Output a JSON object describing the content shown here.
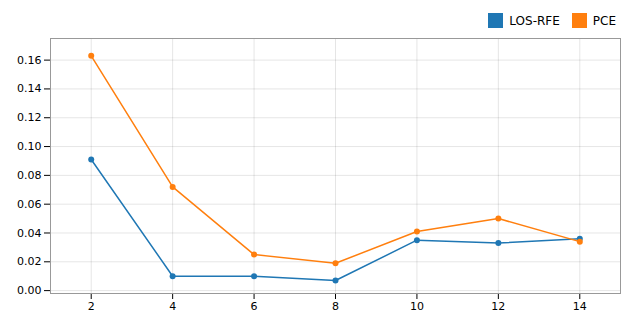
{
  "chart_data": {
    "type": "line",
    "x": [
      2,
      4,
      6,
      8,
      10,
      12,
      14
    ],
    "series": [
      {
        "name": "LOS-RFE",
        "color": "#1f77b4",
        "marker": "circle",
        "values": [
          0.091,
          0.01,
          0.01,
          0.007,
          0.035,
          0.033,
          0.036
        ]
      },
      {
        "name": "PCE",
        "color": "#ff7f0e",
        "marker": "circle",
        "values": [
          0.163,
          0.072,
          0.025,
          0.019,
          0.041,
          0.05,
          0.034
        ]
      }
    ],
    "xlim": [
      1,
      15
    ],
    "xticks": [
      2,
      4,
      6,
      8,
      10,
      12,
      14
    ],
    "ylim": [
      -0.002,
      0.175
    ],
    "yticks": [
      {
        "value": 0.0,
        "label": "0.00"
      },
      0.02,
      0.04,
      0.06,
      0.08,
      {
        "value": 0.1,
        "label": "0.10"
      },
      0.12,
      0.14,
      0.16
    ],
    "grid": true,
    "legend": "upper right"
  }
}
